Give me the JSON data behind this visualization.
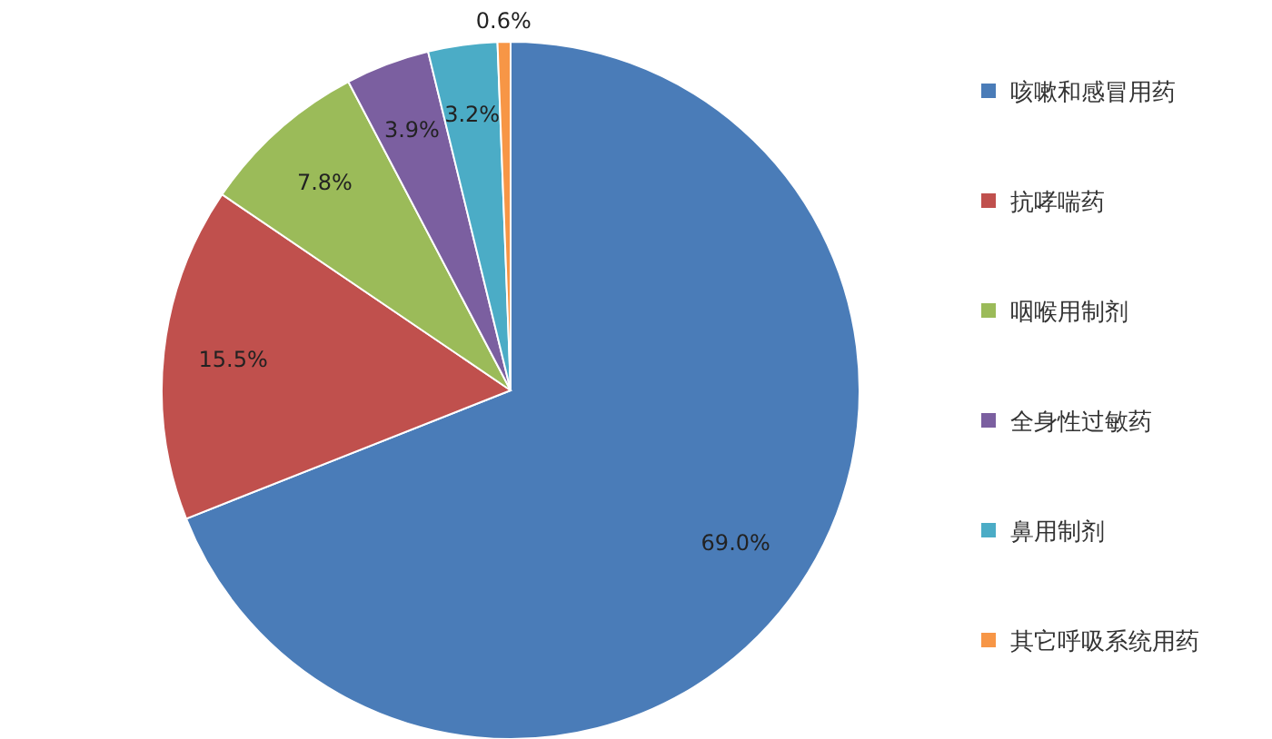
{
  "chart_data": {
    "type": "pie",
    "categories": [
      "咳嗽和感冒用药",
      "抗哮喘药",
      "咽喉用制剂",
      "全身性过敏药",
      "鼻用制剂",
      "其它呼吸系统用药"
    ],
    "values": [
      69.0,
      15.5,
      7.8,
      3.9,
      3.2,
      0.6
    ],
    "colors": [
      "#4a7cb8",
      "#c0504d",
      "#9bbb59",
      "#7b5fa0",
      "#4bacc6",
      "#f79646"
    ],
    "value_labels": [
      "69.0%",
      "15.5%",
      "7.8%",
      "3.9%",
      "3.2%",
      "0.6%"
    ],
    "legend": "right"
  }
}
